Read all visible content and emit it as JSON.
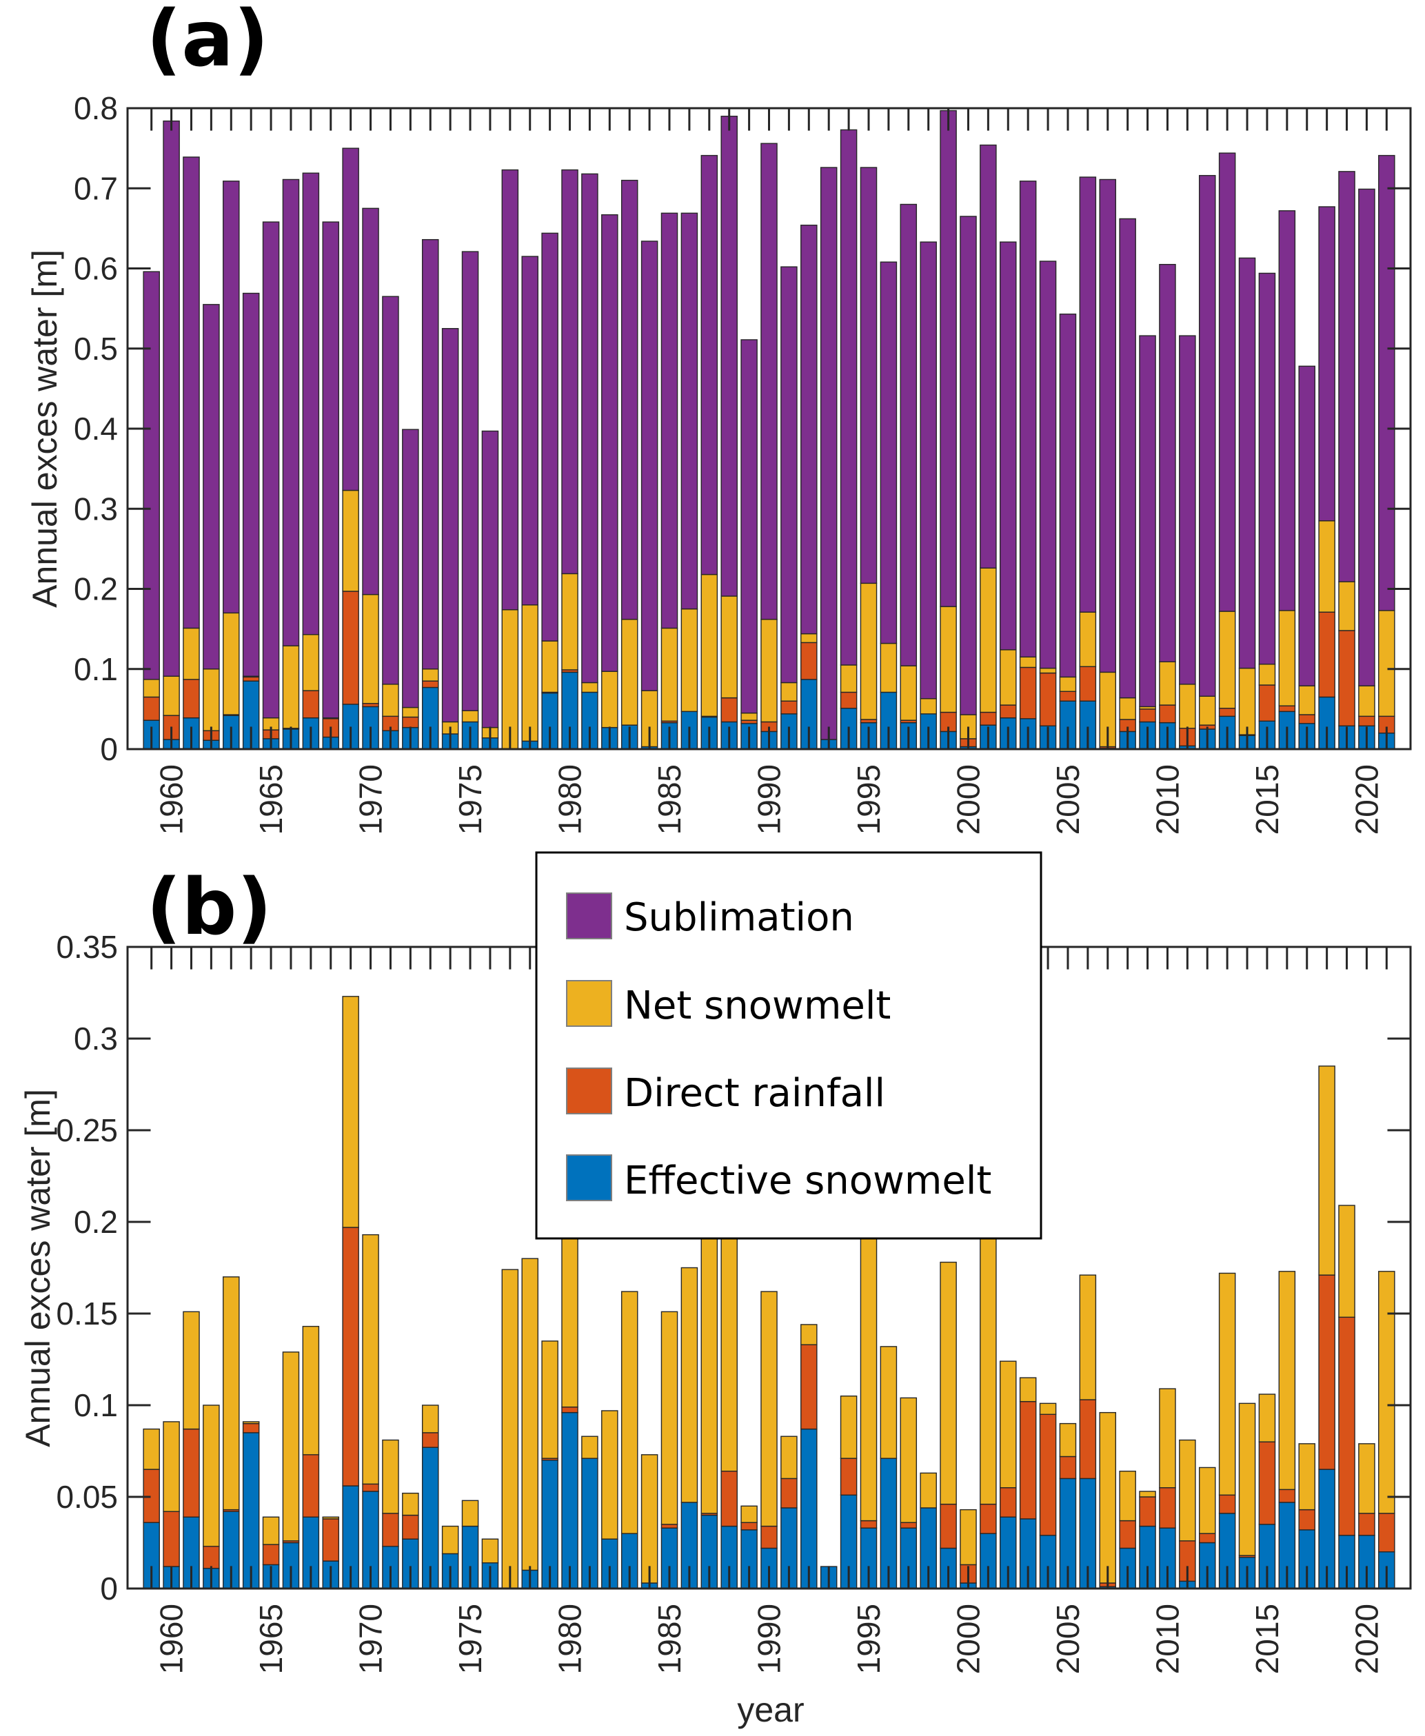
{
  "figure": {
    "legend": {
      "entries": [
        {
          "label": "Sublimation",
          "color": "#7E2F8E"
        },
        {
          "label": "Net snowmelt",
          "color": "#EDB120"
        },
        {
          "label": "Direct rainfall",
          "color": "#D95319"
        },
        {
          "label": "Effective snowmelt",
          "color": "#0072BD"
        }
      ]
    }
  },
  "chart_data": [
    {
      "panel": "(a)",
      "type": "bar",
      "stacked": true,
      "title": "",
      "xlabel": "",
      "ylabel": "Annual exces water [m]",
      "ylim": [
        0,
        0.8
      ],
      "yticks": [
        "0",
        "0.1",
        "0.2",
        "0.3",
        "0.4",
        "0.5",
        "0.6",
        "0.7",
        "0.8"
      ],
      "xlim": [
        1957.8,
        2022.2
      ],
      "xticks": [
        "1960",
        "1965",
        "1970",
        "1975",
        "1980",
        "1985",
        "1990",
        "1995",
        "2000",
        "2005",
        "2010",
        "2015",
        "2020"
      ],
      "grid": false,
      "stack_order": [
        "Effective snowmelt",
        "Direct rainfall",
        "Net snowmelt",
        "Sublimation"
      ],
      "series_source": "shared",
      "include_sublimation": true
    },
    {
      "panel": "(b)",
      "type": "bar",
      "stacked": true,
      "title": "",
      "xlabel": "year",
      "ylabel": "Annual exces water [m]",
      "ylim": [
        0,
        0.35
      ],
      "yticks": [
        "0",
        "0.05",
        "0.1",
        "0.15",
        "0.2",
        "0.25",
        "0.3",
        "0.35"
      ],
      "xlim": [
        1957.8,
        2022.2
      ],
      "xticks": [
        "1960",
        "1965",
        "1970",
        "1975",
        "1980",
        "1985",
        "1990",
        "1995",
        "2000",
        "2005",
        "2010",
        "2015",
        "2020"
      ],
      "grid": false,
      "legend_position": "top-center",
      "stack_order": [
        "Effective snowmelt",
        "Direct rainfall",
        "Net snowmelt"
      ],
      "series_source": "shared",
      "include_sublimation": false
    }
  ],
  "series_data": {
    "x": [
      1959,
      1960,
      1961,
      1962,
      1963,
      1964,
      1965,
      1966,
      1967,
      1968,
      1969,
      1970,
      1971,
      1972,
      1973,
      1974,
      1975,
      1976,
      1977,
      1978,
      1979,
      1980,
      1981,
      1982,
      1983,
      1984,
      1985,
      1986,
      1987,
      1988,
      1989,
      1990,
      1991,
      1992,
      1993,
      1994,
      1995,
      1996,
      1997,
      1998,
      1999,
      2000,
      2001,
      2002,
      2003,
      2004,
      2005,
      2006,
      2007,
      2008,
      2009,
      2010,
      2011,
      2012,
      2013,
      2014,
      2015,
      2016,
      2017,
      2018,
      2019,
      2020,
      2021
    ],
    "series": [
      {
        "name": "Effective snowmelt",
        "values": [
          0.036,
          0.012,
          0.039,
          0.011,
          0.042,
          0.085,
          0.013,
          0.025,
          0.039,
          0.015,
          0.056,
          0.053,
          0.023,
          0.027,
          0.077,
          0.019,
          0.034,
          0.014,
          0.0,
          0.01,
          0.07,
          0.096,
          0.071,
          0.027,
          0.03,
          0.003,
          0.033,
          0.047,
          0.04,
          0.034,
          0.032,
          0.022,
          0.044,
          0.087,
          0.012,
          0.051,
          0.033,
          0.071,
          0.033,
          0.044,
          0.022,
          0.003,
          0.03,
          0.039,
          0.038,
          0.029,
          0.06,
          0.06,
          0.001,
          0.022,
          0.034,
          0.033,
          0.004,
          0.025,
          0.041,
          0.017,
          0.035,
          0.047,
          0.032,
          0.065,
          0.029,
          0.029,
          0.02
        ]
      },
      {
        "name": "Direct rainfall",
        "values": [
          0.029,
          0.03,
          0.048,
          0.012,
          0.001,
          0.005,
          0.011,
          0.001,
          0.034,
          0.023,
          0.141,
          0.004,
          0.018,
          0.013,
          0.008,
          0.0,
          0.0,
          0.0,
          0.0,
          0.0,
          0.001,
          0.003,
          0.0,
          0.0,
          0.0,
          0.0,
          0.002,
          0.0,
          0.001,
          0.03,
          0.004,
          0.012,
          0.016,
          0.046,
          0.0,
          0.02,
          0.004,
          0.0,
          0.003,
          0.0,
          0.024,
          0.01,
          0.016,
          0.016,
          0.064,
          0.066,
          0.012,
          0.043,
          0.002,
          0.015,
          0.016,
          0.022,
          0.022,
          0.005,
          0.01,
          0.001,
          0.045,
          0.007,
          0.011,
          0.106,
          0.119,
          0.012,
          0.021
        ]
      },
      {
        "name": "Net snowmelt",
        "values": [
          0.022,
          0.049,
          0.064,
          0.077,
          0.127,
          0.001,
          0.015,
          0.103,
          0.07,
          0.001,
          0.126,
          0.136,
          0.04,
          0.012,
          0.015,
          0.015,
          0.014,
          0.013,
          0.174,
          0.17,
          0.064,
          0.12,
          0.012,
          0.07,
          0.132,
          0.07,
          0.116,
          0.128,
          0.177,
          0.127,
          0.009,
          0.128,
          0.023,
          0.011,
          0.0,
          0.034,
          0.17,
          0.061,
          0.068,
          0.019,
          0.132,
          0.03,
          0.18,
          0.069,
          0.013,
          0.006,
          0.018,
          0.068,
          0.093,
          0.027,
          0.003,
          0.054,
          0.055,
          0.036,
          0.121,
          0.083,
          0.026,
          0.119,
          0.036,
          0.114,
          0.061,
          0.038,
          0.132
        ]
      },
      {
        "name": "Sublimation",
        "values": [
          0.509,
          0.693,
          0.588,
          0.455,
          0.539,
          0.478,
          0.619,
          0.582,
          0.576,
          0.619,
          0.427,
          0.482,
          0.484,
          0.347,
          0.536,
          0.491,
          0.573,
          0.37,
          0.549,
          0.435,
          0.509,
          0.504,
          0.635,
          0.57,
          0.548,
          0.561,
          0.518,
          0.494,
          0.523,
          0.599,
          0.466,
          0.594,
          0.519,
          0.51,
          0.714,
          0.668,
          0.519,
          0.476,
          0.576,
          0.57,
          0.619,
          0.622,
          0.528,
          0.509,
          0.594,
          0.508,
          0.453,
          0.543,
          0.615,
          0.598,
          0.463,
          0.496,
          0.435,
          0.65,
          0.572,
          0.512,
          0.488,
          0.499,
          0.399,
          0.392,
          0.512,
          0.62,
          0.568
        ]
      }
    ]
  }
}
